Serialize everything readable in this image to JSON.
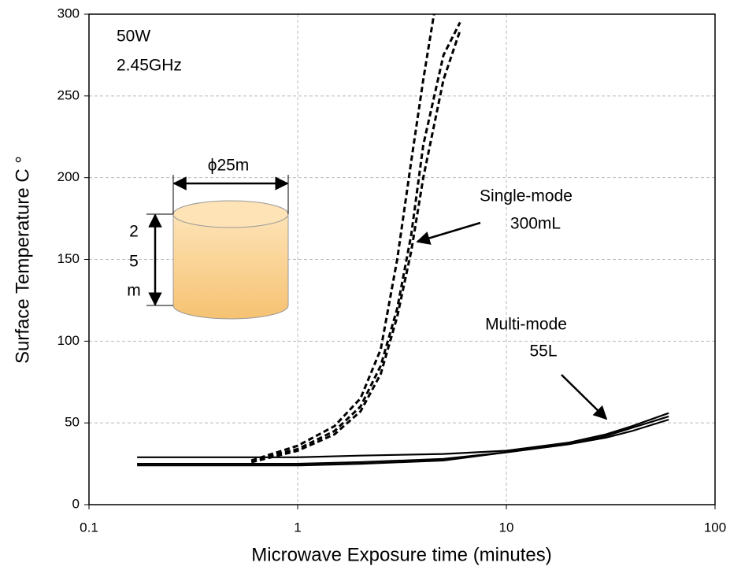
{
  "chart_data": {
    "type": "line",
    "xlabel": "Microwave Exposure time (minutes)",
    "ylabel": "Surface Temperature C °",
    "xscale": "log",
    "xlim": [
      0.1,
      100
    ],
    "xticks": [
      0.1,
      1,
      10,
      100
    ],
    "ylim": [
      0,
      300
    ],
    "yticks": [
      0,
      50,
      100,
      150,
      200,
      250,
      300
    ],
    "grid": true,
    "annotations": [
      "50W",
      "2.45GHz",
      "Single-mode",
      "300mL",
      "Multi-mode",
      "55L",
      "ϕ25m",
      "2",
      "5",
      "m"
    ],
    "series": [
      {
        "color": "#000000",
        "style": "dashed",
        "x": [
          0.6,
          1,
          1.5,
          2,
          2.5,
          3,
          3.5,
          4,
          4.5
        ],
        "values": [
          27,
          36,
          48,
          65,
          95,
          150,
          210,
          260,
          300
        ]
      },
      {
        "color": "#000000",
        "style": "dashed",
        "x": [
          0.6,
          1,
          1.5,
          2,
          2.5,
          3,
          3.5,
          4,
          5,
          6
        ],
        "values": [
          27,
          34,
          45,
          60,
          85,
          120,
          165,
          220,
          275,
          295
        ]
      },
      {
        "color": "#000000",
        "style": "dashed",
        "x": [
          0.6,
          1,
          1.5,
          2,
          2.5,
          3,
          3.5,
          4,
          5,
          6
        ],
        "values": [
          26,
          33,
          43,
          57,
          80,
          115,
          155,
          200,
          260,
          290
        ]
      },
      {
        "color": "#000000",
        "style": "solid",
        "x": [
          0.17,
          0.5,
          1,
          2,
          5,
          10,
          20,
          30,
          40,
          60
        ],
        "values": [
          29,
          29,
          29,
          30,
          31,
          33,
          38,
          43,
          48,
          56
        ]
      },
      {
        "color": "#000000",
        "style": "solid",
        "x": [
          0.17,
          0.5,
          1,
          2,
          5,
          10,
          20,
          30,
          40,
          60
        ],
        "values": [
          25,
          25,
          25,
          26,
          28,
          32,
          37,
          42,
          47,
          54
        ]
      },
      {
        "color": "#000000",
        "style": "solid",
        "x": [
          0.17,
          0.5,
          1,
          2,
          5,
          10,
          20,
          30,
          40,
          60
        ],
        "values": [
          24,
          24,
          24,
          25,
          27,
          32,
          37,
          41,
          45,
          52
        ]
      }
    ]
  }
}
